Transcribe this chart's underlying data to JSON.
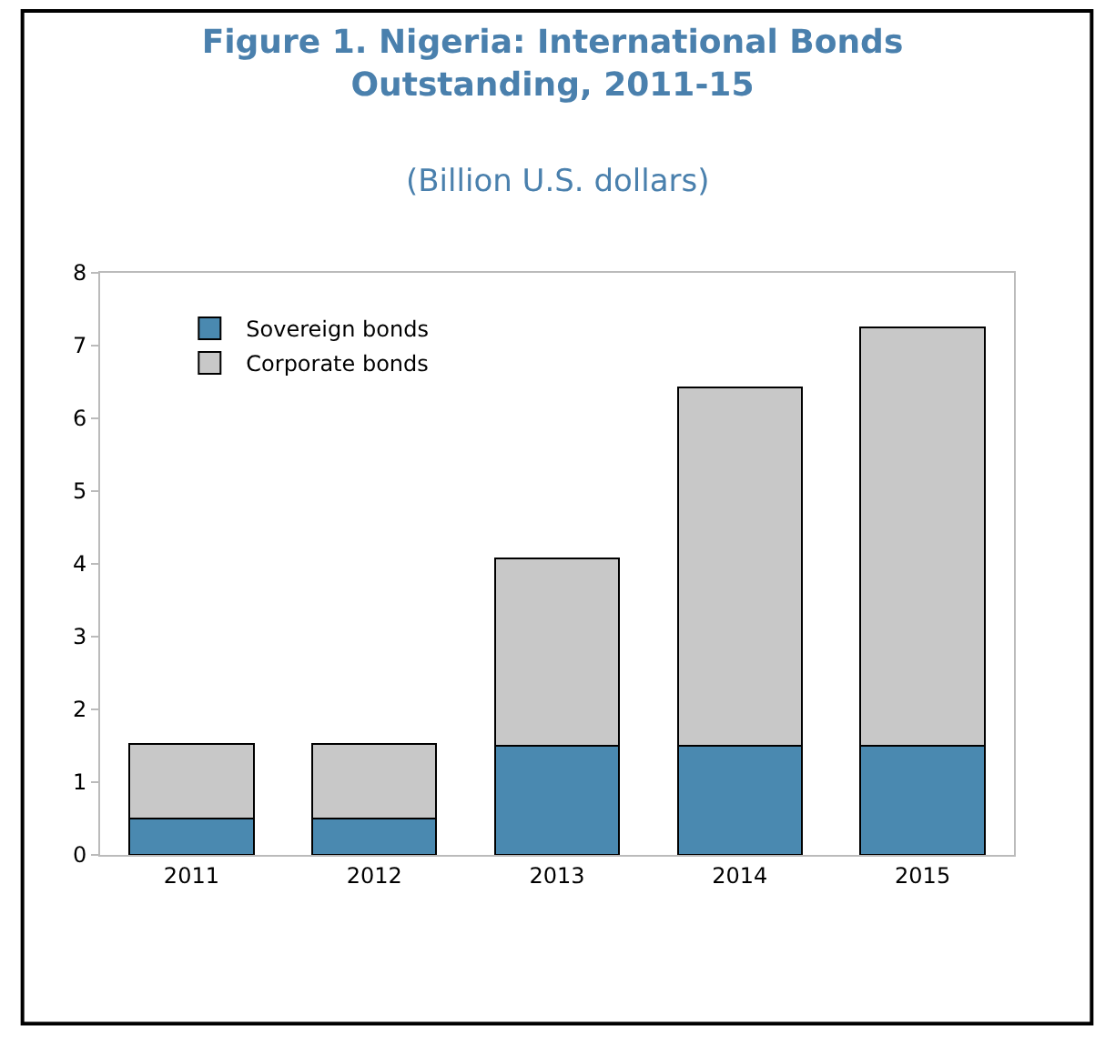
{
  "chart_data": {
    "type": "bar",
    "title": "Figure 1. Nigeria: International Bonds\nOutstanding, 2011-15",
    "subtitle": "(Billion U.S. dollars)",
    "categories": [
      "2011",
      "2012",
      "2013",
      "2014",
      "2015"
    ],
    "stacked": true,
    "series": [
      {
        "name": "Sovereign bonds",
        "color": "#4a89b0",
        "values": [
          0.5,
          0.5,
          1.5,
          1.5,
          1.5
        ]
      },
      {
        "name": "Corporate bonds",
        "color": "#c8c8c8",
        "values": [
          1.03,
          1.03,
          2.57,
          4.93,
          5.75
        ]
      }
    ],
    "ylim": [
      0,
      8
    ],
    "yticks": [
      0,
      1,
      2,
      3,
      4,
      5,
      6,
      7,
      8
    ],
    "legend": "top left"
  }
}
